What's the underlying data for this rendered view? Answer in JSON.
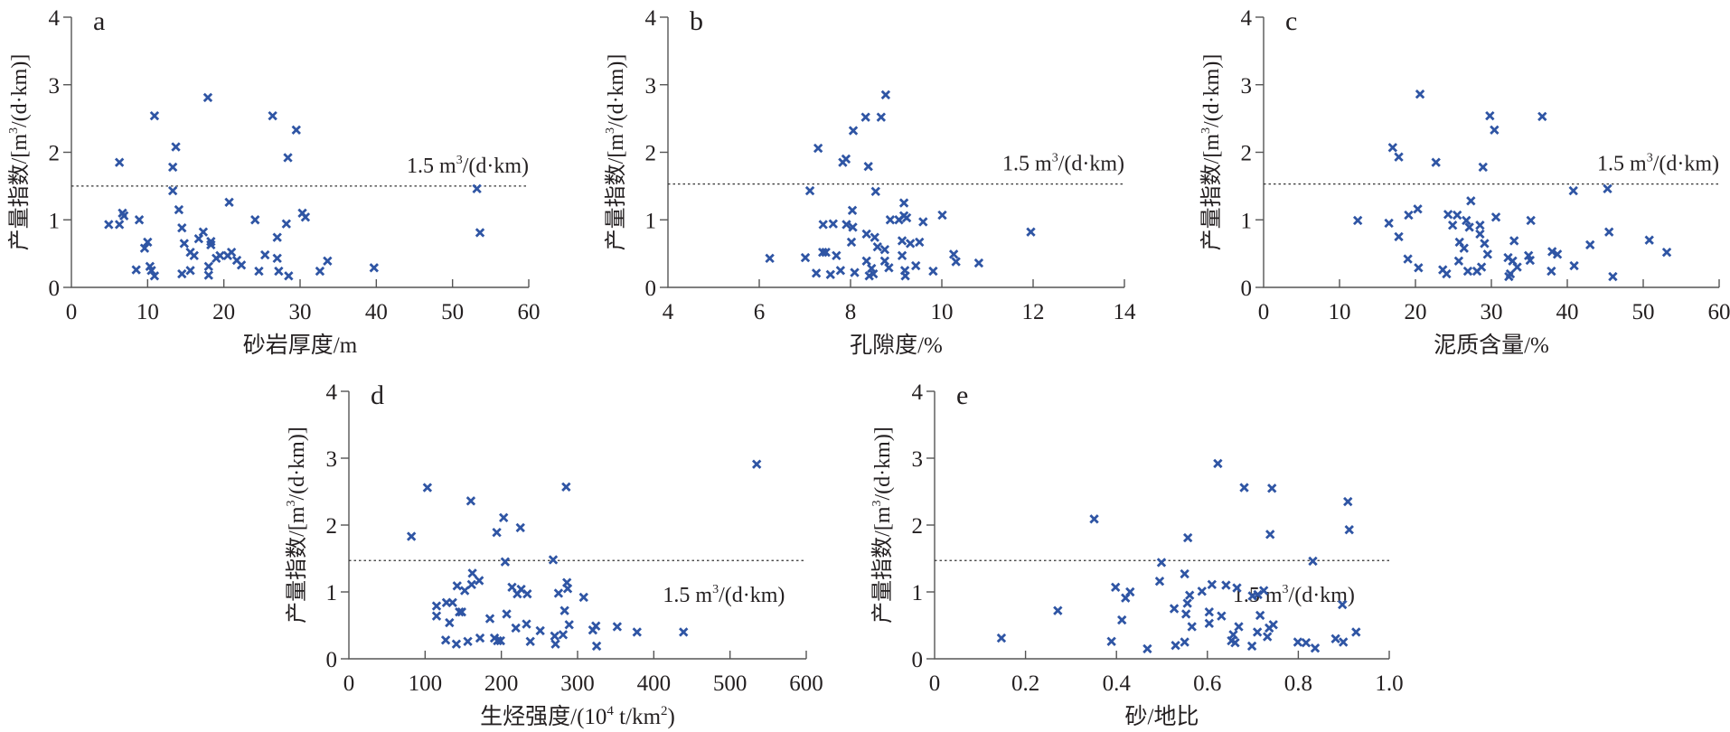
{
  "colors": {
    "marker": "#2f55a4",
    "axis": "#555555",
    "text": "#231f20"
  },
  "chart_data": [
    {
      "type": "scatter",
      "panel": "a",
      "xlabel": "砂岩厚度/m",
      "ylabel_main": "产量指数/[m",
      "ylabel_sup": "3",
      "ylabel_tail": "/(d·km)]",
      "xlim": [
        0,
        60
      ],
      "ylim": [
        0,
        4
      ],
      "xticks": [
        "0",
        "10",
        "20",
        "30",
        "40",
        "50",
        "60"
      ],
      "xtick_values": [
        0,
        10,
        20,
        30,
        40,
        50,
        60
      ],
      "yticks": [
        "0",
        "1",
        "2",
        "3",
        "4"
      ],
      "ytick_values": [
        0,
        1,
        2,
        3,
        4
      ],
      "threshold": {
        "value": 1.5,
        "label_main": "1.5 m",
        "label_sup": "3",
        "label_tail": "/(d·km)"
      },
      "points": [
        [
          4.9,
          0.93
        ],
        [
          6.3,
          0.93
        ],
        [
          6.3,
          1.85
        ],
        [
          6.7,
          1.1
        ],
        [
          6.9,
          1.06
        ],
        [
          8.9,
          1.0
        ],
        [
          8.5,
          0.26
        ],
        [
          9.6,
          0.58
        ],
        [
          10.0,
          0.67
        ],
        [
          10.3,
          0.31
        ],
        [
          10.5,
          0.25
        ],
        [
          10.9,
          0.17
        ],
        [
          10.9,
          2.54
        ],
        [
          13.3,
          1.78
        ],
        [
          13.3,
          1.43
        ],
        [
          13.7,
          2.08
        ],
        [
          14.1,
          1.15
        ],
        [
          14.5,
          0.88
        ],
        [
          14.5,
          0.2
        ],
        [
          14.8,
          0.65
        ],
        [
          15.6,
          0.52
        ],
        [
          15.6,
          0.25
        ],
        [
          16.1,
          0.47
        ],
        [
          16.7,
          0.72
        ],
        [
          17.3,
          0.82
        ],
        [
          17.9,
          2.81
        ],
        [
          18.0,
          0.31
        ],
        [
          18.0,
          0.18
        ],
        [
          18.3,
          0.68
        ],
        [
          18.3,
          0.63
        ],
        [
          19.0,
          0.43
        ],
        [
          19.5,
          0.47
        ],
        [
          20.5,
          0.47
        ],
        [
          20.7,
          1.26
        ],
        [
          21.0,
          0.52
        ],
        [
          21.7,
          0.4
        ],
        [
          22.3,
          0.33
        ],
        [
          24.1,
          1.0
        ],
        [
          24.6,
          0.24
        ],
        [
          25.4,
          0.48
        ],
        [
          26.4,
          2.54
        ],
        [
          27.0,
          0.74
        ],
        [
          27.0,
          0.43
        ],
        [
          27.2,
          0.24
        ],
        [
          28.2,
          0.94
        ],
        [
          28.4,
          1.92
        ],
        [
          28.5,
          0.17
        ],
        [
          29.5,
          2.33
        ],
        [
          30.3,
          1.1
        ],
        [
          30.7,
          1.04
        ],
        [
          32.6,
          0.24
        ],
        [
          33.6,
          0.39
        ],
        [
          39.7,
          0.29
        ],
        [
          53.2,
          1.46
        ],
        [
          53.6,
          0.81
        ]
      ]
    },
    {
      "type": "scatter",
      "panel": "b",
      "xlabel": "孔隙度/%",
      "ylabel_main": "产量指数/[m",
      "ylabel_sup": "3",
      "ylabel_tail": "/(d·km)]",
      "xlim": [
        4,
        14
      ],
      "ylim": [
        0,
        4
      ],
      "xticks": [
        "4",
        "6",
        "8",
        "10",
        "12",
        "14"
      ],
      "xtick_values": [
        4,
        6,
        8,
        10,
        12,
        14
      ],
      "yticks": [
        "0",
        "1",
        "2",
        "3",
        "4"
      ],
      "ytick_values": [
        0,
        1,
        2,
        3,
        4
      ],
      "threshold": {
        "value": 1.53,
        "label_main": "1.5 m",
        "label_sup": "3",
        "label_tail": "/(d·km)"
      },
      "points": [
        [
          6.23,
          0.43
        ],
        [
          7.01,
          0.44
        ],
        [
          7.11,
          1.43
        ],
        [
          7.25,
          0.21
        ],
        [
          7.29,
          2.06
        ],
        [
          7.39,
          0.52
        ],
        [
          7.4,
          0.93
        ],
        [
          7.46,
          0.52
        ],
        [
          7.56,
          0.19
        ],
        [
          7.62,
          0.94
        ],
        [
          7.69,
          0.47
        ],
        [
          7.78,
          0.25
        ],
        [
          7.83,
          1.85
        ],
        [
          7.9,
          1.9
        ],
        [
          7.91,
          0.93
        ],
        [
          8.02,
          0.67
        ],
        [
          8.04,
          1.14
        ],
        [
          8.05,
          0.89
        ],
        [
          8.06,
          2.32
        ],
        [
          8.09,
          0.22
        ],
        [
          8.33,
          2.52
        ],
        [
          8.35,
          0.79
        ],
        [
          8.35,
          0.39
        ],
        [
          8.39,
          1.79
        ],
        [
          8.41,
          0.17
        ],
        [
          8.46,
          0.28
        ],
        [
          8.5,
          0.2
        ],
        [
          8.53,
          0.74
        ],
        [
          8.55,
          1.42
        ],
        [
          8.59,
          0.6
        ],
        [
          8.67,
          2.52
        ],
        [
          8.75,
          0.56
        ],
        [
          8.75,
          0.39
        ],
        [
          8.77,
          2.85
        ],
        [
          8.84,
          0.29
        ],
        [
          8.87,
          1.0
        ],
        [
          9.06,
          1.0
        ],
        [
          9.13,
          0.69
        ],
        [
          9.13,
          0.47
        ],
        [
          9.17,
          1.25
        ],
        [
          9.17,
          1.06
        ],
        [
          9.19,
          0.25
        ],
        [
          9.2,
          0.17
        ],
        [
          9.23,
          1.03
        ],
        [
          9.31,
          0.65
        ],
        [
          9.43,
          0.32
        ],
        [
          9.51,
          0.67
        ],
        [
          9.59,
          0.97
        ],
        [
          9.81,
          0.24
        ],
        [
          10.01,
          1.07
        ],
        [
          10.26,
          0.49
        ],
        [
          10.31,
          0.38
        ],
        [
          10.81,
          0.36
        ],
        [
          11.95,
          0.82
        ]
      ]
    },
    {
      "type": "scatter",
      "panel": "c",
      "xlabel": "泥质含量/%",
      "ylabel_main": "产量指数/[m",
      "ylabel_sup": "3",
      "ylabel_tail": "/(d·km)]",
      "xlim": [
        0,
        60
      ],
      "ylim": [
        0,
        4
      ],
      "xticks": [
        "0",
        "10",
        "20",
        "30",
        "40",
        "50",
        "60"
      ],
      "xtick_values": [
        0,
        10,
        20,
        30,
        40,
        50,
        60
      ],
      "yticks": [
        "0",
        "1",
        "2",
        "3",
        "4"
      ],
      "ytick_values": [
        0,
        1,
        2,
        3,
        4
      ],
      "threshold": {
        "value": 1.53,
        "label_main": "1.5 m",
        "label_sup": "3",
        "label_tail": "/(d·km)"
      },
      "points": [
        [
          12.4,
          0.99
        ],
        [
          16.5,
          0.95
        ],
        [
          17.0,
          2.07
        ],
        [
          17.8,
          1.93
        ],
        [
          17.8,
          0.75
        ],
        [
          19.0,
          0.42
        ],
        [
          19.1,
          1.07
        ],
        [
          20.3,
          1.16
        ],
        [
          20.4,
          0.29
        ],
        [
          20.6,
          2.86
        ],
        [
          22.7,
          1.85
        ],
        [
          23.6,
          0.26
        ],
        [
          24.1,
          0.2
        ],
        [
          24.3,
          1.08
        ],
        [
          24.9,
          0.92
        ],
        [
          25.5,
          1.07
        ],
        [
          25.7,
          0.39
        ],
        [
          25.8,
          0.67
        ],
        [
          26.4,
          0.58
        ],
        [
          26.7,
          0.99
        ],
        [
          26.9,
          0.24
        ],
        [
          27.1,
          0.89
        ],
        [
          27.3,
          1.28
        ],
        [
          28.1,
          0.24
        ],
        [
          28.5,
          0.79
        ],
        [
          28.5,
          0.92
        ],
        [
          28.7,
          0.3
        ],
        [
          28.9,
          1.78
        ],
        [
          29.1,
          0.65
        ],
        [
          29.5,
          0.49
        ],
        [
          29.8,
          2.54
        ],
        [
          30.4,
          2.33
        ],
        [
          30.6,
          1.04
        ],
        [
          32.2,
          0.44
        ],
        [
          32.3,
          0.16
        ],
        [
          32.5,
          0.2
        ],
        [
          32.8,
          0.39
        ],
        [
          33.0,
          0.69
        ],
        [
          33.4,
          0.3
        ],
        [
          34.9,
          0.47
        ],
        [
          35.1,
          0.4
        ],
        [
          35.2,
          0.99
        ],
        [
          36.7,
          2.53
        ],
        [
          37.9,
          0.24
        ],
        [
          38.0,
          0.53
        ],
        [
          38.7,
          0.49
        ],
        [
          40.8,
          1.43
        ],
        [
          40.9,
          0.32
        ],
        [
          43.0,
          0.63
        ],
        [
          45.3,
          1.46
        ],
        [
          45.5,
          0.82
        ],
        [
          46.0,
          0.16
        ],
        [
          50.8,
          0.7
        ],
        [
          53.1,
          0.52
        ]
      ]
    },
    {
      "type": "scatter",
      "panel": "d",
      "xlabel_main": "生烃强度/(10",
      "xlabel_sup": "4",
      "xlabel_mid": " t/km",
      "xlabel_sup2": "2",
      "xlabel_tail": ")",
      "ylabel_main": "产量指数/[m",
      "ylabel_sup": "3",
      "ylabel_tail": "/(d·km)]",
      "xlim": [
        0,
        600
      ],
      "ylim": [
        0,
        4
      ],
      "xticks": [
        "0",
        "100",
        "200",
        "300",
        "400",
        "500",
        "600"
      ],
      "xtick_values": [
        0,
        100,
        200,
        300,
        400,
        500,
        600
      ],
      "yticks": [
        "0",
        "1",
        "2",
        "3",
        "4"
      ],
      "ytick_values": [
        0,
        1,
        2,
        3,
        4
      ],
      "threshold": {
        "value": 1.47,
        "label_main": "1.5 m",
        "label_sup": "3",
        "label_tail": "/(d·km)"
      },
      "points": [
        [
          82,
          1.83
        ],
        [
          103,
          2.56
        ],
        [
          115,
          0.79
        ],
        [
          115,
          0.64
        ],
        [
          127,
          0.28
        ],
        [
          128,
          0.84
        ],
        [
          132,
          0.54
        ],
        [
          136,
          0.84
        ],
        [
          141,
          0.22
        ],
        [
          142,
          1.09
        ],
        [
          145,
          0.7
        ],
        [
          148,
          0.7
        ],
        [
          152,
          1.02
        ],
        [
          156,
          0.26
        ],
        [
          160,
          2.36
        ],
        [
          161,
          1.11
        ],
        [
          162,
          1.28
        ],
        [
          171,
          1.17
        ],
        [
          172,
          0.31
        ],
        [
          185,
          0.6
        ],
        [
          191,
          0.31
        ],
        [
          194,
          1.89
        ],
        [
          195,
          0.27
        ],
        [
          199,
          0.27
        ],
        [
          203,
          2.11
        ],
        [
          205,
          1.45
        ],
        [
          207,
          0.67
        ],
        [
          214,
          1.07
        ],
        [
          219,
          0.46
        ],
        [
          221,
          0.97
        ],
        [
          225,
          1.96
        ],
        [
          226,
          1.04
        ],
        [
          233,
          0.52
        ],
        [
          234,
          0.97
        ],
        [
          238,
          0.26
        ],
        [
          251,
          0.42
        ],
        [
          268,
          1.48
        ],
        [
          270,
          0.34
        ],
        [
          271,
          0.22
        ],
        [
          275,
          0.98
        ],
        [
          281,
          0.36
        ],
        [
          283,
          0.72
        ],
        [
          285,
          2.57
        ],
        [
          286,
          1.14
        ],
        [
          287,
          1.05
        ],
        [
          289,
          0.51
        ],
        [
          308,
          0.92
        ],
        [
          320,
          0.43
        ],
        [
          324,
          0.49
        ],
        [
          325,
          0.19
        ],
        [
          352,
          0.48
        ],
        [
          378,
          0.4
        ],
        [
          439,
          0.4
        ],
        [
          535,
          2.91
        ]
      ]
    },
    {
      "type": "scatter",
      "panel": "e",
      "xlabel": "砂/地比",
      "ylabel_main": "产量指数/[m",
      "ylabel_sup": "3",
      "ylabel_tail": "/(d·km)]",
      "xlim": [
        0,
        1.0
      ],
      "ylim": [
        0,
        4
      ],
      "xticks": [
        "0",
        "0.2",
        "0.4",
        "0.6",
        "0.8",
        "1.0"
      ],
      "xtick_values": [
        0,
        0.2,
        0.4,
        0.6,
        0.8,
        1.0
      ],
      "yticks": [
        "0",
        "1",
        "2",
        "3",
        "4"
      ],
      "ytick_values": [
        0,
        1,
        2,
        3,
        4
      ],
      "threshold": {
        "value": 1.47,
        "label_main": "1.5 m",
        "label_sup": "3",
        "label_tail": "/(d·km)"
      },
      "points": [
        [
          0.147,
          0.31
        ],
        [
          0.271,
          0.72
        ],
        [
          0.351,
          2.09
        ],
        [
          0.389,
          0.26
        ],
        [
          0.398,
          1.07
        ],
        [
          0.412,
          0.58
        ],
        [
          0.42,
          0.91
        ],
        [
          0.43,
          1.0
        ],
        [
          0.468,
          0.15
        ],
        [
          0.495,
          1.16
        ],
        [
          0.499,
          1.44
        ],
        [
          0.527,
          0.75
        ],
        [
          0.53,
          0.2
        ],
        [
          0.55,
          1.27
        ],
        [
          0.55,
          0.25
        ],
        [
          0.553,
          0.67
        ],
        [
          0.556,
          0.83
        ],
        [
          0.557,
          1.81
        ],
        [
          0.561,
          0.95
        ],
        [
          0.566,
          0.48
        ],
        [
          0.588,
          1.01
        ],
        [
          0.604,
          0.7
        ],
        [
          0.604,
          0.53
        ],
        [
          0.61,
          1.11
        ],
        [
          0.623,
          2.92
        ],
        [
          0.631,
          0.64
        ],
        [
          0.641,
          1.1
        ],
        [
          0.653,
          0.27
        ],
        [
          0.657,
          0.36
        ],
        [
          0.661,
          0.24
        ],
        [
          0.665,
          1.06
        ],
        [
          0.669,
          0.48
        ],
        [
          0.681,
          2.56
        ],
        [
          0.698,
          0.19
        ],
        [
          0.699,
          0.94
        ],
        [
          0.71,
          0.4
        ],
        [
          0.711,
          0.96
        ],
        [
          0.716,
          0.65
        ],
        [
          0.724,
          1.02
        ],
        [
          0.732,
          0.33
        ],
        [
          0.736,
          0.46
        ],
        [
          0.738,
          1.86
        ],
        [
          0.742,
          2.55
        ],
        [
          0.745,
          0.51
        ],
        [
          0.799,
          0.25
        ],
        [
          0.817,
          0.24
        ],
        [
          0.832,
          1.46
        ],
        [
          0.837,
          0.16
        ],
        [
          0.882,
          0.3
        ],
        [
          0.897,
          0.81
        ],
        [
          0.899,
          0.25
        ],
        [
          0.909,
          2.35
        ],
        [
          0.912,
          1.93
        ],
        [
          0.927,
          0.4
        ]
      ]
    }
  ]
}
